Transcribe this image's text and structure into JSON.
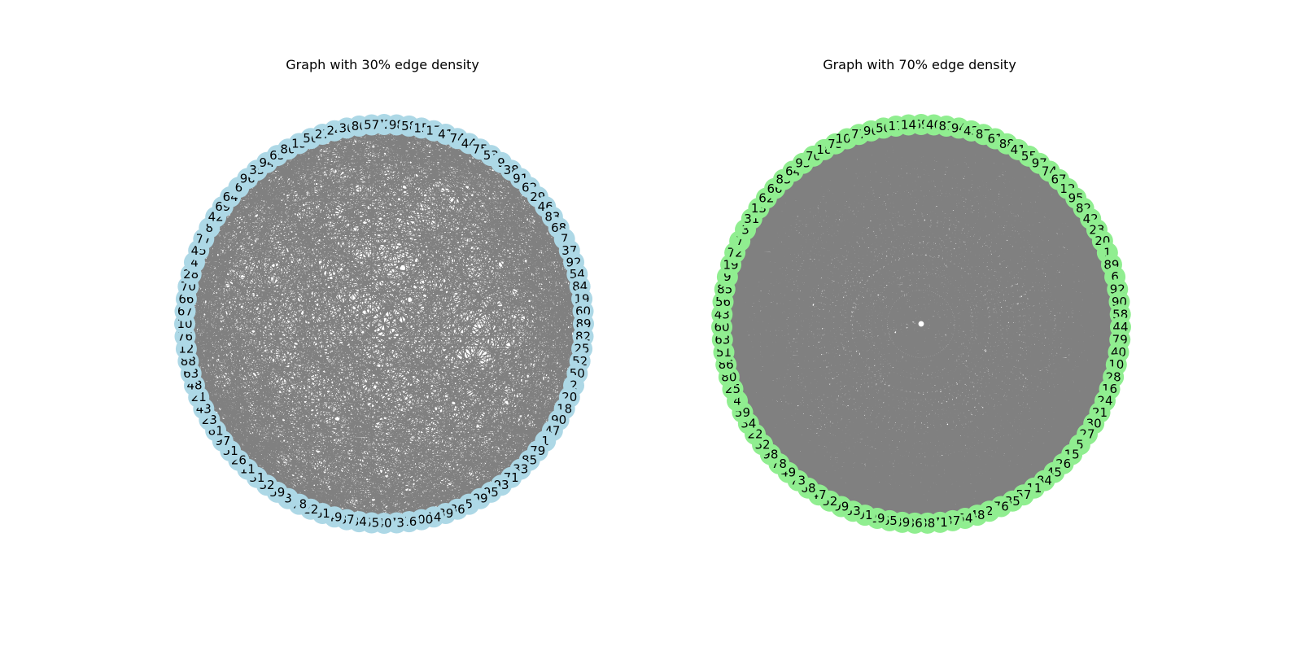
{
  "panels": [
    {
      "title": "Graph with 30% edge density",
      "edge_density": 0.3,
      "node_color": "#add8e6",
      "edge_color": "#808080",
      "nodes": [
        72,
        98,
        58,
        15,
        17,
        41,
        74,
        44,
        75,
        53,
        9,
        38,
        91,
        62,
        29,
        46,
        83,
        68,
        7,
        37,
        92,
        54,
        84,
        19,
        60,
        89,
        82,
        25,
        52,
        50,
        2,
        20,
        18,
        90,
        47,
        1,
        79,
        85,
        33,
        71,
        93,
        95,
        99,
        5,
        36,
        39,
        14,
        100,
        16,
        73,
        40,
        55,
        34,
        87,
        49,
        61,
        22,
        78,
        3,
        59,
        32,
        31,
        11,
        26,
        51,
        97,
        81,
        23,
        43,
        21,
        48,
        63,
        88,
        12,
        76,
        10,
        67,
        66,
        70,
        28,
        4,
        45,
        77,
        8,
        42,
        69,
        64,
        6,
        96,
        35,
        94,
        65,
        80,
        13,
        56,
        27,
        24,
        30,
        86,
        57
      ]
    },
    {
      "title": "Graph with 70% edge density",
      "edge_density": 0.7,
      "node_color": "#90ee90",
      "edge_color": "#808080",
      "nodes": [
        69,
        46,
        81,
        94,
        43,
        87,
        61,
        88,
        41,
        55,
        97,
        74,
        67,
        12,
        95,
        82,
        42,
        23,
        20,
        1,
        89,
        6,
        92,
        90,
        58,
        44,
        79,
        40,
        10,
        28,
        16,
        24,
        21,
        30,
        27,
        5,
        15,
        26,
        45,
        84,
        11,
        57,
        35,
        76,
        2,
        48,
        54,
        37,
        71,
        38,
        36,
        39,
        65,
        29,
        91,
        53,
        99,
        52,
        47,
        68,
        73,
        49,
        78,
        98,
        32,
        22,
        34,
        59,
        4,
        25,
        80,
        86,
        51,
        63,
        60,
        43,
        56,
        85,
        9,
        19,
        72,
        7,
        3,
        31,
        13,
        62,
        66,
        83,
        64,
        93,
        70,
        18,
        75,
        100,
        77,
        96,
        50,
        17,
        14
      ]
    }
  ]
}
